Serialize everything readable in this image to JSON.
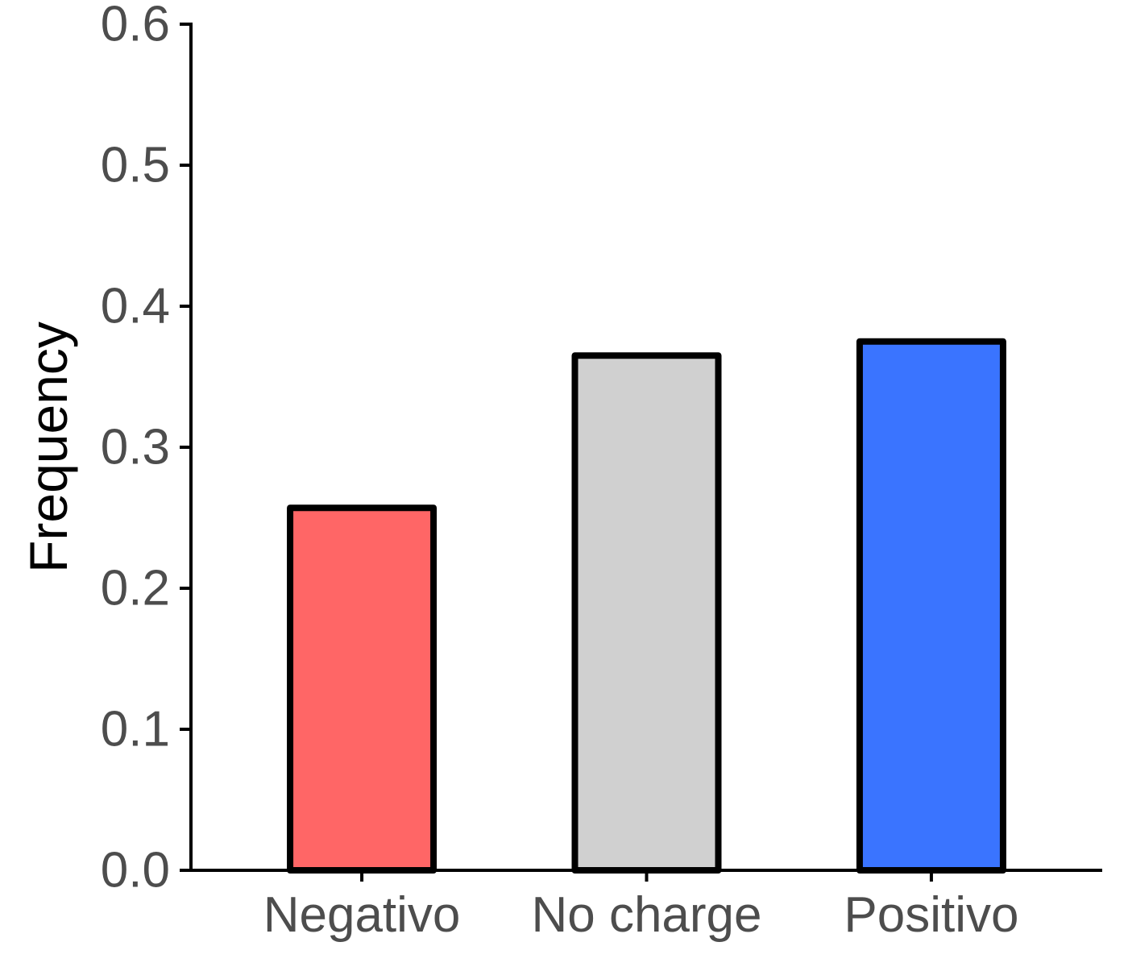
{
  "chart_data": {
    "type": "bar",
    "title": "",
    "xlabel": "",
    "ylabel": "Frequency",
    "categories": [
      "Negativo",
      "No charge",
      "Positivo"
    ],
    "values": [
      0.257,
      0.365,
      0.375
    ],
    "colors": [
      "#FF6666",
      "#D0D0D0",
      "#3A74FF"
    ],
    "ylim": [
      0,
      0.6
    ],
    "yticks": [
      "0.0",
      "0.1",
      "0.2",
      "0.3",
      "0.4",
      "0.5",
      "0.6"
    ],
    "grid": false,
    "legend": "none"
  }
}
